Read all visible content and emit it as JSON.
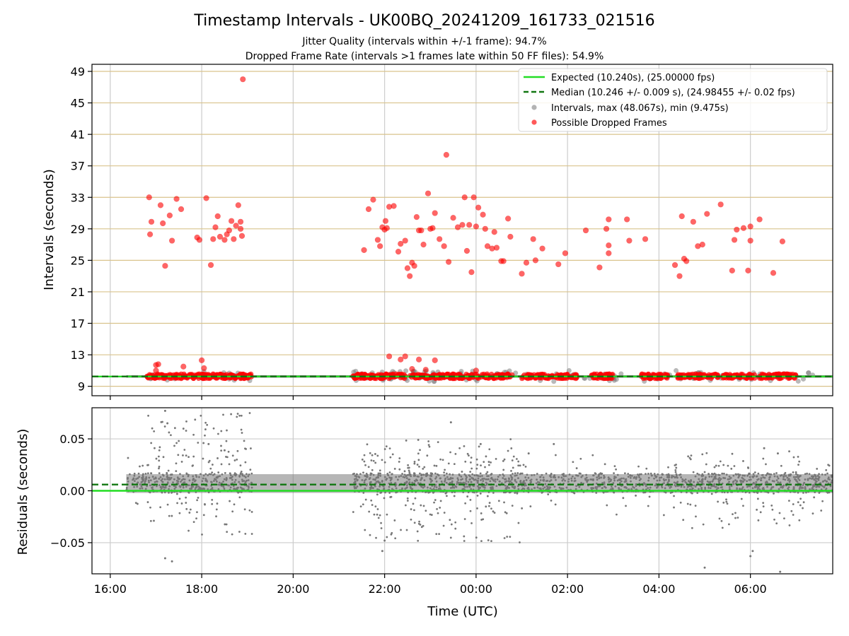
{
  "chart_data": {
    "title": "Timestamp Intervals - UK00BQ_20241209_161733_021516",
    "subtitle_1": "Jitter Quality (intervals within +/-1 frame): 94.7%",
    "subtitle_2": "Dropped Frame Rate (intervals >1 frames late within 50 FF files): 54.9%",
    "xlabel": "Time (UTC)",
    "x_ticks": [
      "16:00",
      "18:00",
      "20:00",
      "22:00",
      "00:00",
      "02:00",
      "04:00",
      "06:00"
    ],
    "x_range_hours": [
      15.6,
      31.8
    ],
    "panels": [
      {
        "type": "scatter",
        "ylabel": "Intervals (seconds)",
        "ylim": [
          7.8,
          49.9
        ],
        "y_ticks": [
          9,
          13,
          17,
          21,
          25,
          29,
          33,
          37,
          41,
          45,
          49
        ],
        "grid": true,
        "legend_position": "top-right",
        "legend": [
          "Expected (10.240s), (25.00000 fps)",
          "Median (10.246 +/- 0.009 s), (24.98455 +/- 0.02 fps)",
          "Intervals, max (48.067s), min (9.475s)",
          "Possible Dropped Frames"
        ],
        "expected": 10.24,
        "median": 10.246,
        "baseline_band": [
          10.1,
          10.4
        ],
        "dropped_frames": [
          [
            16.85,
            33.0
          ],
          [
            16.87,
            28.3
          ],
          [
            16.9,
            29.9
          ],
          [
            17.1,
            32.0
          ],
          [
            17.15,
            29.7
          ],
          [
            17.2,
            24.3
          ],
          [
            17.3,
            30.7
          ],
          [
            17.35,
            27.5
          ],
          [
            17.45,
            32.8
          ],
          [
            17.55,
            31.5
          ],
          [
            17.6,
            11.5
          ],
          [
            18.1,
            32.9
          ],
          [
            18.2,
            24.4
          ],
          [
            18.25,
            27.7
          ],
          [
            18.3,
            29.2
          ],
          [
            18.35,
            30.6
          ],
          [
            18.4,
            28.0
          ],
          [
            18.5,
            27.6
          ],
          [
            18.55,
            28.3
          ],
          [
            18.6,
            28.8
          ],
          [
            18.65,
            30.0
          ],
          [
            18.7,
            27.7
          ],
          [
            18.75,
            29.4
          ],
          [
            18.8,
            32.0
          ],
          [
            18.85,
            29.9
          ],
          [
            18.88,
            28.1
          ],
          [
            18.9,
            48.0
          ],
          [
            18.85,
            29.0
          ],
          [
            17.0,
            11.7
          ],
          [
            17.05,
            11.8
          ],
          [
            17.0,
            11.0
          ],
          [
            17.9,
            27.9
          ],
          [
            17.95,
            27.6
          ],
          [
            18.0,
            12.3
          ],
          [
            18.05,
            11.3
          ],
          [
            21.55,
            26.3
          ],
          [
            21.65,
            31.5
          ],
          [
            21.75,
            32.7
          ],
          [
            21.85,
            27.6
          ],
          [
            21.9,
            26.8
          ],
          [
            21.95,
            29.2
          ],
          [
            22.0,
            28.9
          ],
          [
            22.02,
            30.0
          ],
          [
            22.05,
            29.1
          ],
          [
            22.1,
            31.8
          ],
          [
            22.2,
            31.9
          ],
          [
            22.3,
            26.1
          ],
          [
            22.35,
            27.1
          ],
          [
            22.45,
            27.5
          ],
          [
            22.5,
            24.0
          ],
          [
            22.55,
            23.0
          ],
          [
            22.6,
            24.7
          ],
          [
            22.65,
            24.3
          ],
          [
            22.7,
            30.5
          ],
          [
            22.75,
            28.8
          ],
          [
            22.8,
            28.8
          ],
          [
            22.85,
            27.0
          ],
          [
            22.95,
            33.5
          ],
          [
            23.0,
            29.0
          ],
          [
            23.05,
            29.1
          ],
          [
            23.1,
            31.0
          ],
          [
            23.2,
            27.7
          ],
          [
            23.3,
            26.8
          ],
          [
            23.35,
            38.4
          ],
          [
            23.4,
            24.8
          ],
          [
            23.5,
            30.4
          ],
          [
            23.6,
            29.2
          ],
          [
            23.7,
            29.5
          ],
          [
            23.75,
            33.0
          ],
          [
            23.8,
            26.2
          ],
          [
            23.85,
            29.5
          ],
          [
            23.9,
            23.5
          ],
          [
            23.95,
            33.0
          ],
          [
            24.0,
            29.3
          ],
          [
            24.05,
            31.7
          ],
          [
            24.15,
            30.8
          ],
          [
            24.2,
            29.0
          ],
          [
            24.25,
            26.8
          ],
          [
            24.35,
            26.5
          ],
          [
            24.4,
            28.6
          ],
          [
            24.45,
            26.6
          ],
          [
            24.55,
            24.9
          ],
          [
            24.6,
            24.9
          ],
          [
            24.7,
            30.3
          ],
          [
            24.75,
            28.0
          ],
          [
            25.0,
            23.3
          ],
          [
            25.1,
            24.7
          ],
          [
            25.25,
            27.7
          ],
          [
            25.3,
            25.0
          ],
          [
            25.45,
            26.5
          ],
          [
            25.8,
            24.5
          ],
          [
            25.95,
            25.9
          ],
          [
            22.1,
            12.8
          ],
          [
            22.35,
            12.4
          ],
          [
            22.45,
            12.8
          ],
          [
            22.6,
            11.2
          ],
          [
            22.75,
            12.4
          ],
          [
            22.9,
            11.1
          ],
          [
            23.1,
            12.3
          ],
          [
            24.0,
            11.0
          ],
          [
            26.4,
            28.8
          ],
          [
            26.7,
            24.1
          ],
          [
            26.85,
            29.0
          ],
          [
            26.9,
            30.2
          ],
          [
            26.9,
            25.9
          ],
          [
            26.9,
            26.9
          ],
          [
            27.3,
            30.2
          ],
          [
            27.35,
            27.5
          ],
          [
            27.7,
            27.7
          ],
          [
            28.35,
            24.4
          ],
          [
            28.45,
            23.0
          ],
          [
            28.5,
            30.6
          ],
          [
            28.55,
            25.2
          ],
          [
            28.6,
            24.9
          ],
          [
            28.75,
            29.9
          ],
          [
            28.85,
            26.8
          ],
          [
            28.95,
            27.0
          ],
          [
            29.05,
            30.9
          ],
          [
            29.35,
            32.1
          ],
          [
            29.6,
            23.7
          ],
          [
            29.65,
            27.6
          ],
          [
            29.7,
            28.9
          ],
          [
            29.85,
            29.1
          ],
          [
            29.95,
            23.7
          ],
          [
            30.0,
            29.3
          ],
          [
            30.0,
            27.5
          ],
          [
            30.2,
            30.2
          ],
          [
            30.5,
            23.4
          ],
          [
            30.7,
            27.4
          ]
        ],
        "dropped_baseline_spans": [
          [
            16.8,
            19.1
          ],
          [
            21.3,
            24.8
          ],
          [
            25.0,
            26.2
          ],
          [
            26.5,
            27.0
          ],
          [
            27.6,
            28.2
          ],
          [
            28.4,
            29.3
          ],
          [
            29.4,
            30.1
          ],
          [
            30.2,
            31.0
          ]
        ]
      },
      {
        "type": "scatter",
        "ylabel": "Residuals (seconds)",
        "ylim": [
          -0.08,
          0.08
        ],
        "y_ticks": [
          "0.05",
          "0.00",
          "−0.05"
        ],
        "y_tick_values": [
          0.05,
          0.0,
          -0.05
        ],
        "grid": true,
        "expected": 0.0,
        "median": 0.006,
        "data_start_hour": 16.35
      }
    ]
  }
}
